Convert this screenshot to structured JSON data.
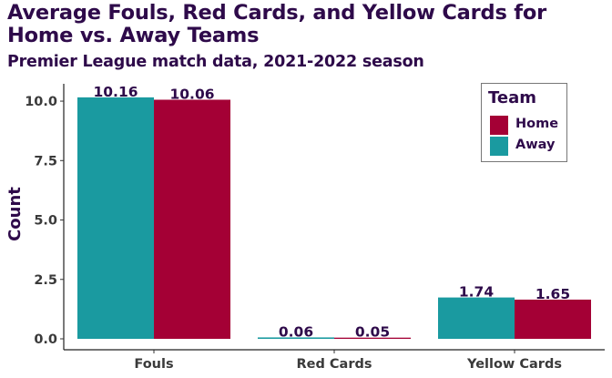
{
  "chart_data": {
    "type": "bar",
    "title": "Average Fouls, Red Cards, and Yellow Cards for Home vs. Away Teams",
    "subtitle": "Premier League match data, 2021-2022 season",
    "xlabel": "",
    "ylabel": "Count",
    "categories": [
      "Fouls",
      "Red Cards",
      "Yellow Cards"
    ],
    "series": [
      {
        "name": "Away",
        "color": "#1a9aa0",
        "values": [
          10.16,
          0.06,
          1.74
        ],
        "labels": [
          "10.16",
          "0.06",
          "1.74"
        ]
      },
      {
        "name": "Home",
        "color": "#a40035",
        "values": [
          10.06,
          0.05,
          1.65
        ],
        "labels": [
          "10.06",
          "0.05",
          "1.65"
        ]
      }
    ],
    "ylim": [
      0,
      10.5
    ],
    "yticks": [
      0,
      2.5,
      5,
      7.5,
      10
    ],
    "ytick_labels": [
      "0.0",
      "2.5",
      "5.0",
      "7.5",
      "10.0"
    ],
    "grid": false,
    "legend": {
      "title": "Team",
      "placement": "top-right",
      "entries": [
        {
          "name": "Home",
          "color": "#a40035"
        },
        {
          "name": "Away",
          "color": "#1a9aa0"
        }
      ]
    }
  }
}
